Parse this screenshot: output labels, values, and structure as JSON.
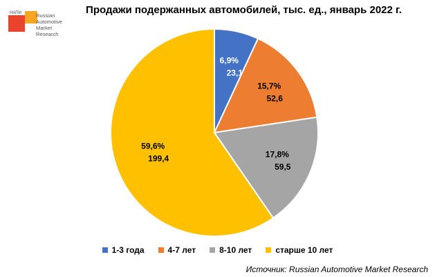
{
  "title": "Продажи подержанных автомобилей, тыс. ед., январь 2022 г.",
  "logo": {
    "small_text": "НАПИ",
    "lines": [
      "Russian",
      "Automotive",
      "Market",
      "Research"
    ]
  },
  "source": "Источник: Russian Automotive Market Research",
  "colors": {
    "series": [
      "#4472C4",
      "#ED7D31",
      "#A5A5A5",
      "#FFC000"
    ],
    "label_dark": "#000000",
    "label_light": "#ffffff"
  },
  "chart_data": {
    "type": "pie",
    "title": "Продажи подержанных автомобилей, тыс. ед., январь 2022 г.",
    "categories": [
      "1-3 года",
      "4-7 лет",
      "8-10 лет",
      "старше 10 лет"
    ],
    "values": [
      23.1,
      52.6,
      59.5,
      199.4
    ],
    "value_labels": [
      "23,1",
      "52,6",
      "59,5",
      "199,4"
    ],
    "percent_labels": [
      "6,9%",
      "15,7%",
      "17,8%",
      "59,6%"
    ],
    "legend_position": "bottom"
  }
}
